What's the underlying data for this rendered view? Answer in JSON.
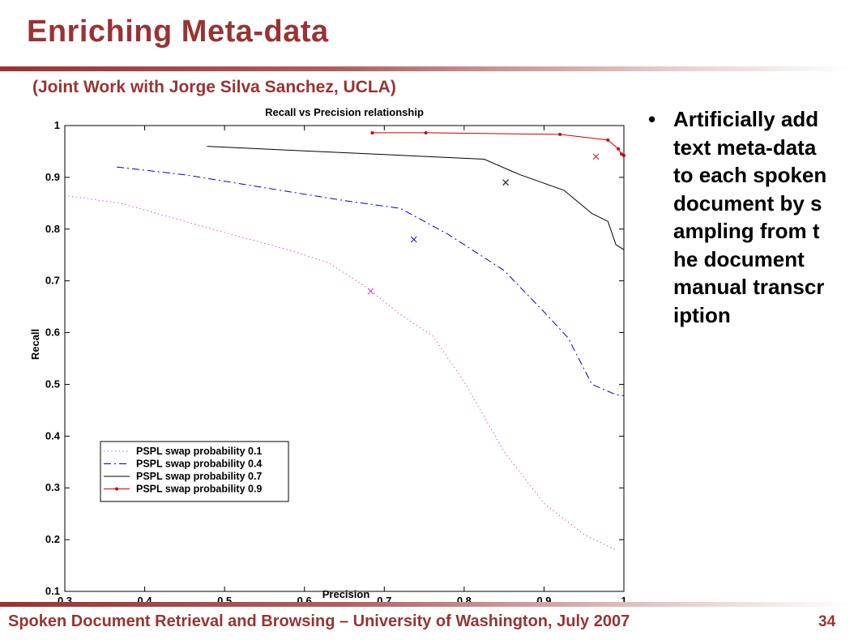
{
  "slide": {
    "title": "Enriching Meta-data",
    "subtitle": "(Joint Work with Jorge Silva Sanchez, UCLA)",
    "bullet": "Artificially add text meta-data to each spoken document by sampling from the document manual transcription",
    "footer": "Spoken Document Retrieval and Browsing – University of Washington, July 2007",
    "page_number": "34"
  },
  "colors": {
    "accent": "#993333",
    "bullet_text": "#000000"
  },
  "chart_data": {
    "type": "line",
    "title": "Recall vs Precision relationship",
    "xlabel": "Precision",
    "ylabel": "Recall",
    "xlim": [
      0.3,
      1
    ],
    "ylim": [
      0.1,
      1
    ],
    "xticks": [
      "0.3",
      "0.4",
      "0.5",
      "0.6",
      "0.7",
      "0.8",
      "0.9",
      "1"
    ],
    "yticks": [
      "0.1",
      "0.2",
      "0.3",
      "0.4",
      "0.5",
      "0.6",
      "0.7",
      "0.8",
      "0.9",
      "1"
    ],
    "grid": false,
    "legend_position": "bottom-left",
    "series": [
      {
        "name": "PSPL swap probability 0.1",
        "color": "#cc33cc",
        "style": "dotted",
        "points": [
          [
            0.3,
            0.865
          ],
          [
            0.37,
            0.85
          ],
          [
            0.45,
            0.815
          ],
          [
            0.52,
            0.785
          ],
          [
            0.58,
            0.76
          ],
          [
            0.63,
            0.735
          ],
          [
            0.68,
            0.685
          ],
          [
            0.72,
            0.635
          ],
          [
            0.76,
            0.595
          ],
          [
            0.8,
            0.505
          ],
          [
            0.85,
            0.37
          ],
          [
            0.9,
            0.27
          ],
          [
            0.95,
            0.21
          ],
          [
            0.99,
            0.18
          ]
        ],
        "marker": {
          "x": 0.683,
          "y": 0.68
        }
      },
      {
        "name": "PSPL swap probability 0.4",
        "color": "#0000cc",
        "style": "dash-dot",
        "points": [
          [
            0.365,
            0.92
          ],
          [
            0.45,
            0.905
          ],
          [
            0.55,
            0.88
          ],
          [
            0.65,
            0.855
          ],
          [
            0.72,
            0.84
          ],
          [
            0.78,
            0.79
          ],
          [
            0.85,
            0.72
          ],
          [
            0.9,
            0.64
          ],
          [
            0.93,
            0.59
          ],
          [
            0.96,
            0.5
          ],
          [
            0.99,
            0.48
          ],
          [
            1.0,
            0.478
          ]
        ],
        "marker": {
          "x": 0.737,
          "y": 0.78
        }
      },
      {
        "name": "PSPL swap probability 0.7",
        "color": "#000000",
        "style": "solid",
        "points": [
          [
            0.478,
            0.96
          ],
          [
            0.6,
            0.951
          ],
          [
            0.7,
            0.944
          ],
          [
            0.825,
            0.935
          ],
          [
            0.87,
            0.905
          ],
          [
            0.925,
            0.875
          ],
          [
            0.96,
            0.83
          ],
          [
            0.98,
            0.815
          ],
          [
            0.99,
            0.77
          ],
          [
            1.0,
            0.76
          ]
        ],
        "marker": {
          "x": 0.852,
          "y": 0.89
        }
      },
      {
        "name": "PSPL swap probability 0.9",
        "color": "#cc0000",
        "style": "solid-dot",
        "points": [
          [
            0.685,
            0.986
          ],
          [
            0.752,
            0.986
          ],
          [
            0.92,
            0.983
          ],
          [
            0.98,
            0.972
          ],
          [
            0.993,
            0.955
          ],
          [
            0.997,
            0.945
          ],
          [
            1.0,
            0.942
          ]
        ],
        "marker": {
          "x": 0.965,
          "y": 0.94
        }
      }
    ]
  }
}
